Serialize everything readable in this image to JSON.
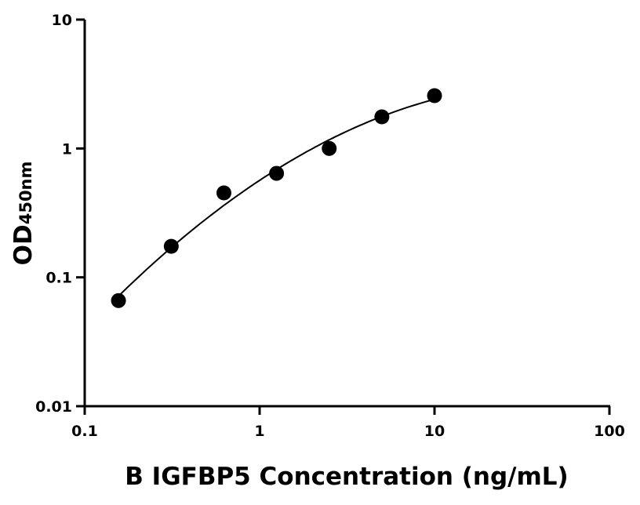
{
  "chart_data": {
    "type": "scatter",
    "xlabel": "B IGFBP5 Concentration (ng/mL)",
    "ylabel_main": "OD",
    "ylabel_sub": "450nm",
    "x_scale": "log",
    "y_scale": "log",
    "xlim": [
      0.1,
      100
    ],
    "ylim": [
      0.01,
      10
    ],
    "x_ticks": [
      0.1,
      1,
      10,
      100
    ],
    "x_tick_labels": [
      "0.1",
      "1",
      "10",
      "100"
    ],
    "y_ticks": [
      0.01,
      0.1,
      1,
      10
    ],
    "y_tick_labels": [
      "0.01",
      "0.1",
      "1",
      "10"
    ],
    "grid": false,
    "points": {
      "x": [
        0.156,
        0.3125,
        0.625,
        1.25,
        2.5,
        5,
        10
      ],
      "y": [
        0.066,
        0.174,
        0.452,
        0.641,
        1.0,
        1.76,
        2.57
      ]
    },
    "fit_curve": {
      "x_range": [
        0.15,
        10
      ]
    },
    "colors": {
      "points": "#000000",
      "curve": "#000000"
    }
  }
}
